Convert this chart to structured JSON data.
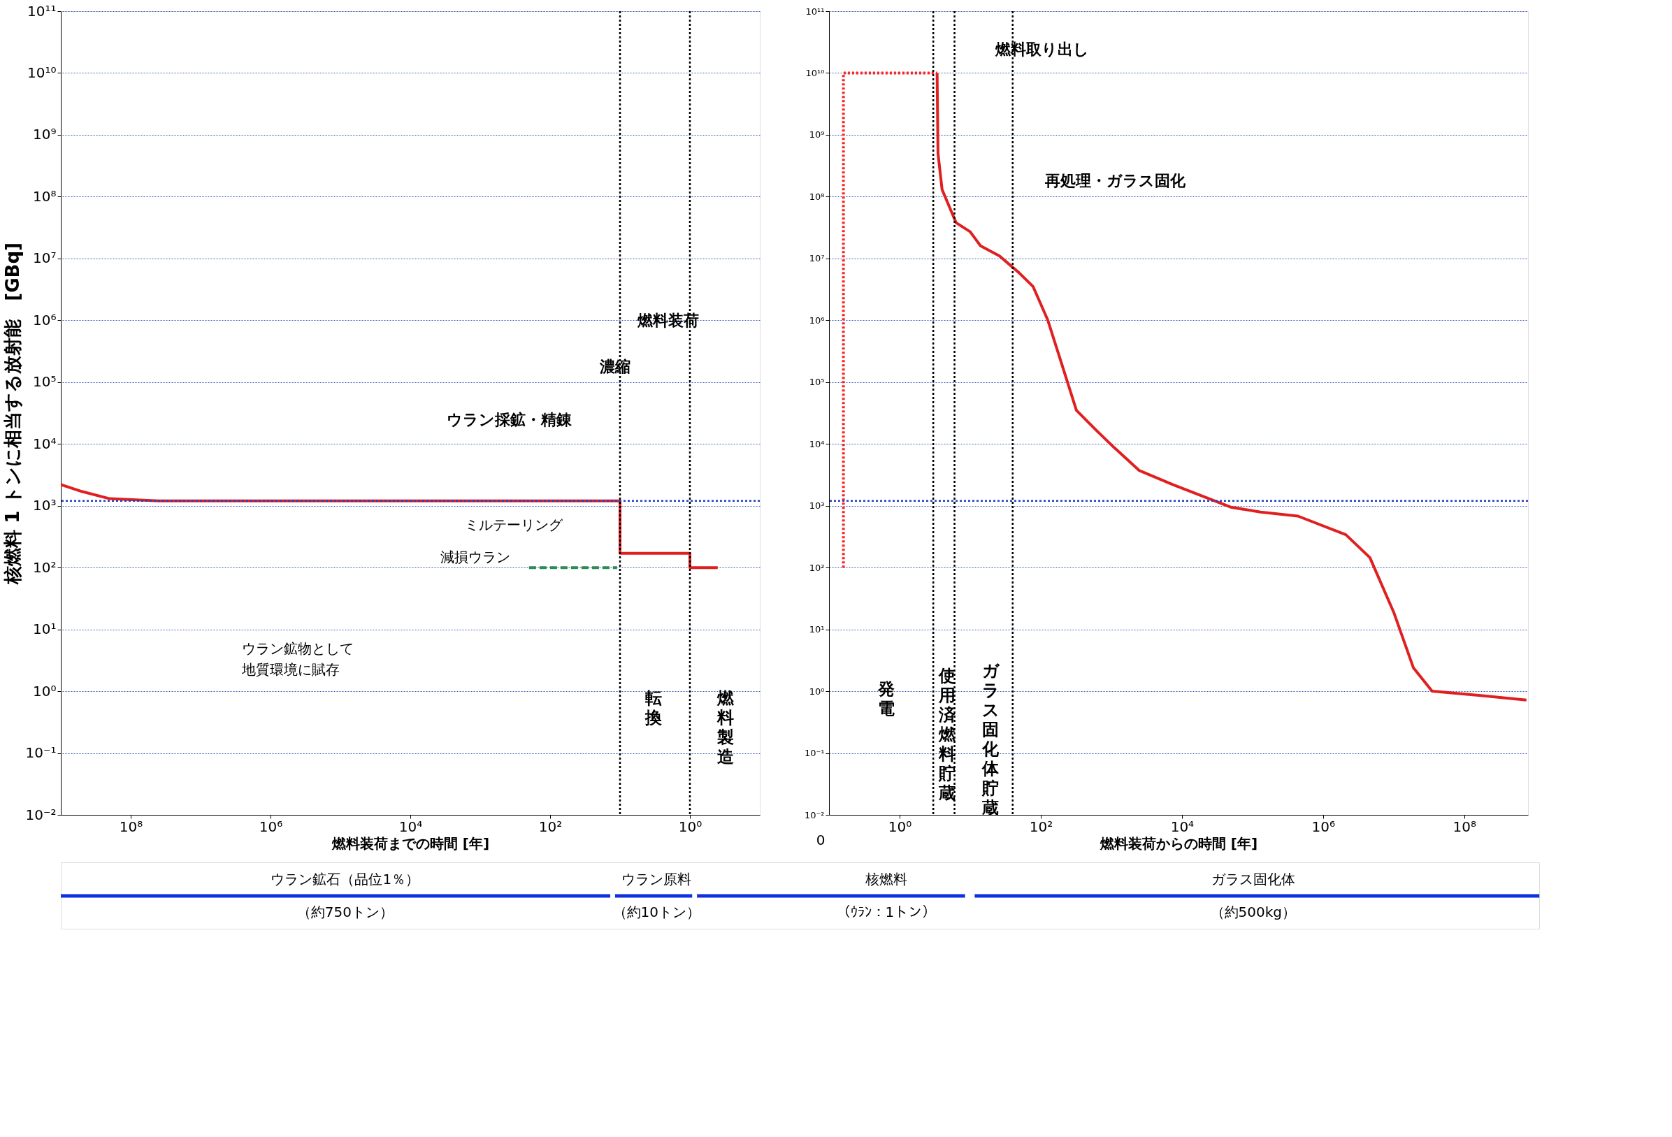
{
  "chart_data": [
    {
      "type": "line",
      "xlabel": "燃料装荷までの時間 [年]",
      "ylabel": "核燃料 1 トンに相当する放射能　[GBq]",
      "log": "xy",
      "grid": "y",
      "xlim": [
        1000000000.0,
        0.1
      ],
      "ylim": [
        0.01,
        100000000000.0
      ],
      "xticks": [
        {
          "value": 100000000.0,
          "label": "10⁸"
        },
        {
          "value": 1000000.0,
          "label": "10⁶"
        },
        {
          "value": 10000.0,
          "label": "10⁴"
        },
        {
          "value": 100,
          "label": "10²"
        },
        {
          "value": 1,
          "label": "10⁰"
        }
      ],
      "yticks": [
        {
          "value": 0.01,
          "label": "10⁻²"
        },
        {
          "value": 0.1,
          "label": "10⁻¹"
        },
        {
          "value": 1,
          "label": "10⁰"
        },
        {
          "value": 10,
          "label": "10¹"
        },
        {
          "value": 100,
          "label": "10²"
        },
        {
          "value": 1000,
          "label": "10³"
        },
        {
          "value": 10000.0,
          "label": "10⁴"
        },
        {
          "value": 100000.0,
          "label": "10⁵"
        },
        {
          "value": 1000000.0,
          "label": "10⁶"
        },
        {
          "value": 10000000.0,
          "label": "10⁷"
        },
        {
          "value": 100000000.0,
          "label": "10⁸"
        },
        {
          "value": 1000000000.0,
          "label": "10⁹"
        },
        {
          "value": 10000000000.0,
          "label": "10¹⁰"
        },
        {
          "value": 100000000000.0,
          "label": "10¹¹"
        }
      ],
      "series": [
        {
          "color": "#e02020",
          "line_style": "solid",
          "x": [
            1000000000.0,
            500000000.0,
            200000000.0,
            40000000.0,
            10,
            10,
            1,
            1,
            0.4
          ],
          "values": [
            2200,
            1700,
            1300,
            1200,
            1200,
            170,
            170,
            100,
            100
          ]
        },
        {
          "color": "#2e8b57",
          "line_style": "dashed",
          "x": [
            200,
            11
          ],
          "values": [
            100,
            100
          ]
        }
      ],
      "ref_lines": [
        {
          "axis": "y",
          "value": 1200,
          "color": "#2040c0",
          "line_style": "dotted"
        },
        {
          "axis": "x",
          "value": 10,
          "color": "#000000",
          "line_style": "dotted"
        },
        {
          "axis": "x",
          "value": 1,
          "color": "#000000",
          "line_style": "dotted"
        }
      ],
      "annotations": [
        "ウラン採鉱・精錬",
        "濃縮",
        "燃料装荷",
        "ミルテーリング",
        "減損ウラン",
        "ウラン鉱物として地質環境に賦存",
        "転換",
        "燃料製造"
      ]
    },
    {
      "type": "line",
      "xlabel": "燃料装荷からの時間 [年]",
      "log": "xy",
      "grid": "y",
      "xlim": [
        0.1,
        800000000.0
      ],
      "ylim": [
        0.01,
        100000000000.0
      ],
      "xticks": [
        {
          "value": 1,
          "label": "10⁰"
        },
        {
          "value": 100,
          "label": "10²"
        },
        {
          "value": 10000.0,
          "label": "10⁴"
        },
        {
          "value": 1000000.0,
          "label": "10⁶"
        },
        {
          "value": 100000000.0,
          "label": "10⁸"
        }
      ],
      "yticks": [
        {
          "value": 0.01,
          "label": "10⁻²"
        },
        {
          "value": 0.1,
          "label": "10⁻¹"
        },
        {
          "value": 1,
          "label": "10⁰"
        },
        {
          "value": 10,
          "label": "10¹"
        },
        {
          "value": 100,
          "label": "10²"
        },
        {
          "value": 1000,
          "label": "10³"
        },
        {
          "value": 10000.0,
          "label": "10⁴"
        },
        {
          "value": 100000.0,
          "label": "10⁵"
        },
        {
          "value": 1000000.0,
          "label": "10⁶"
        },
        {
          "value": 10000000.0,
          "label": "10⁷"
        },
        {
          "value": 100000000.0,
          "label": "10⁸"
        },
        {
          "value": 1000000000.0,
          "label": "10⁹"
        },
        {
          "value": 10000000000.0,
          "label": "10¹⁰"
        },
        {
          "value": 100000000000.0,
          "label": "10¹¹"
        }
      ],
      "series": [
        {
          "color": "#ff2020",
          "line_style": "dotted",
          "x": [
            0.16,
            0.16,
            3.4
          ],
          "values": [
            100,
            10000000000.0,
            10000000000.0
          ]
        },
        {
          "color": "#e02020",
          "line_style": "solid",
          "x": [
            3.4,
            3.5,
            4.0,
            6.3,
            10,
            14,
            26,
            49,
            78,
            126,
            200,
            320,
            600,
            1100,
            2500,
            7400,
            49000,
            130000,
            440000,
            2100000,
            4600000,
            10000000.0,
            19000000.0,
            35000000.0,
            170000000.0,
            760000000.0
          ],
          "values": [
            10000000000.0,
            500000000.0,
            130000000.0,
            38000000.0,
            27000000.0,
            16000000.0,
            11000000.0,
            5900000.0,
            3500000.0,
            1000000.0,
            190000,
            35000,
            17000,
            8700,
            3700,
            2200,
            950,
            790,
            680,
            340,
            145,
            19,
            2.4,
            1.0,
            0.85,
            0.72
          ]
        }
      ],
      "ref_lines": [
        {
          "axis": "y",
          "value": 1200,
          "color": "#2040c0",
          "line_style": "dotted"
        },
        {
          "axis": "x",
          "value": 3,
          "color": "#000000",
          "line_style": "dotted"
        },
        {
          "axis": "x",
          "value": 6,
          "color": "#000000",
          "line_style": "dotted"
        },
        {
          "axis": "x",
          "value": 40,
          "color": "#000000",
          "line_style": "dotted"
        }
      ],
      "annotations": [
        "燃料取り出し",
        "再処理・ガラス固化",
        "発電",
        "使用済燃料貯蔵",
        "ガラス固化体貯蔵",
        "0"
      ]
    },
    {
      "type": "other",
      "annotations": [
        "ウラン鉱石（品位1％）",
        "（約750トン）",
        "ウラン原料",
        "（約10トン）",
        "核燃料",
        "（ｳﾗﾝ：1トン）",
        "ガラス固化体",
        "（約500kg）"
      ]
    }
  ]
}
